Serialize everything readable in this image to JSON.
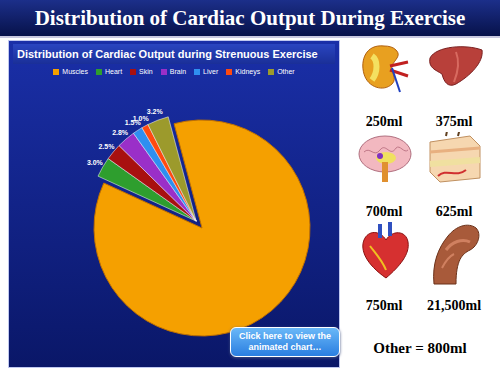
{
  "slide_title": "Distribution of Cardiac Output During Exercise",
  "chart_data": {
    "type": "pie",
    "title": "Distribution of Cardiac Output during Strenuous Exercise",
    "categories": [
      "Muscles",
      "Heart",
      "Skin",
      "Brain",
      "Liver",
      "Kidneys",
      "Other"
    ],
    "values": [
      86.0,
      3.0,
      2.5,
      2.8,
      1.5,
      1.0,
      3.2
    ],
    "value_labels": [
      null,
      "3.0%",
      "2.5%",
      "2.8%",
      "1.5%",
      "1.0%",
      "3.2%"
    ],
    "colors": [
      "#f5a000",
      "#2e9e2e",
      "#a81010",
      "#9a2fc8",
      "#2f8ff0",
      "#ff4a10",
      "#9c9a2c"
    ],
    "legend": "top",
    "data_labels": true
  },
  "volumes": [
    "250ml",
    "375ml",
    "700ml",
    "625ml",
    "750ml",
    "21,500ml"
  ],
  "other": "Other = 800ml",
  "button": "Click here to view the animated chart…"
}
